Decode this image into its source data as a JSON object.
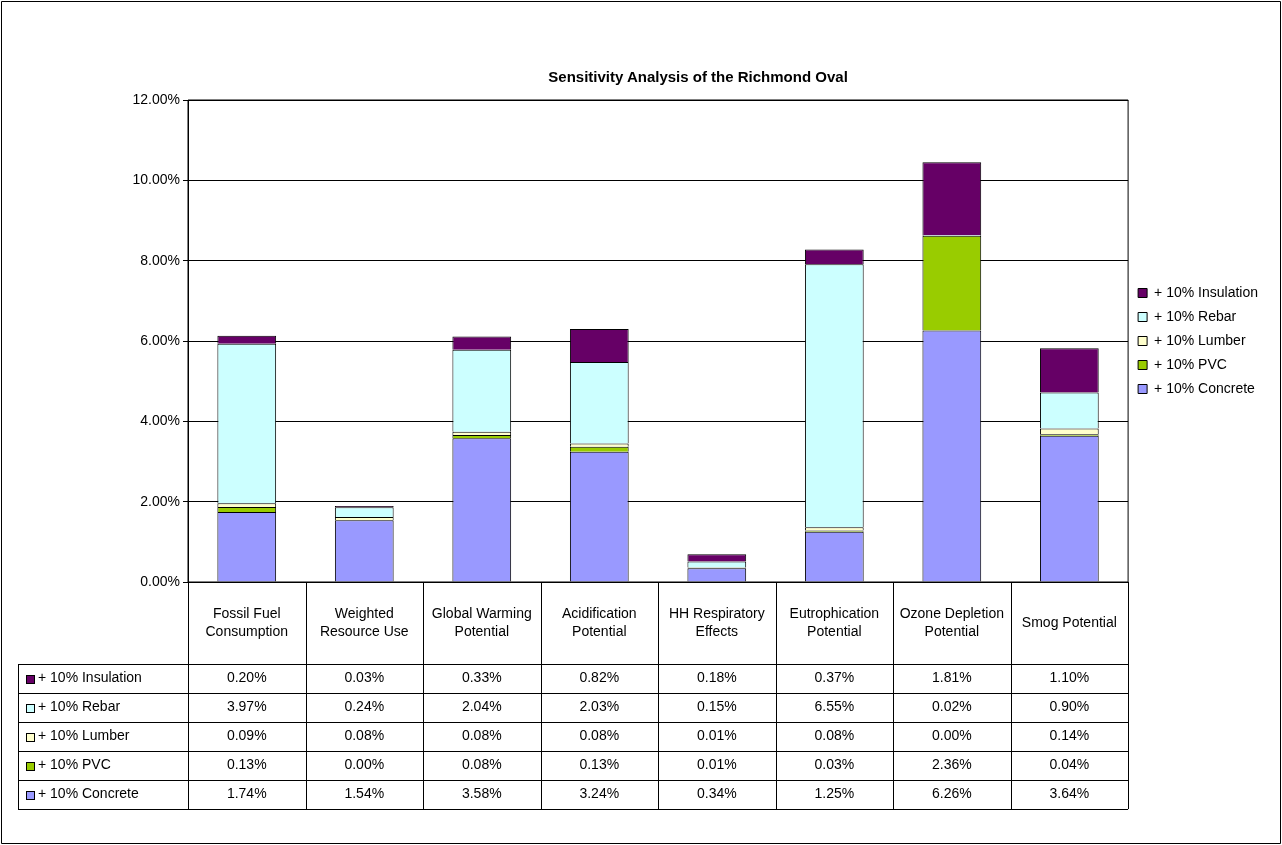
{
  "chart_data": {
    "type": "bar",
    "title": "Sensitivity Analysis of the Richmond Oval",
    "stacked": true,
    "grid": "y",
    "legend": "right",
    "data_labels": true,
    "categories": [
      "Fossil Fuel Consumption",
      "Weighted Resource Use",
      "Global Warming Potential",
      "Acidification Potential",
      "HH Respiratory Effects",
      "Eutrophication Potential",
      "Ozone Depletion Potential",
      "Smog Potential"
    ],
    "ylim": [
      0,
      12
    ],
    "yticks": [
      {
        "value": 0,
        "label": "0.00%"
      },
      {
        "value": 2,
        "label": "2.00%"
      },
      {
        "value": 4,
        "label": "4.00%"
      },
      {
        "value": 6,
        "label": "6.00%"
      },
      {
        "value": 8,
        "label": "8.00%"
      },
      {
        "value": 10,
        "label": "10.00%"
      },
      {
        "value": 12,
        "label": "12.00%"
      }
    ],
    "series": [
      {
        "name": "+ 10% Concrete",
        "color": "#9999ff",
        "values": [
          1.74,
          1.54,
          3.58,
          3.24,
          0.34,
          1.25,
          6.26,
          3.64
        ],
        "value_labels": [
          "1.74%",
          "1.54%",
          "3.58%",
          "3.24%",
          "0.34%",
          "1.25%",
          "6.26%",
          "3.64%"
        ]
      },
      {
        "name": "+ 10% PVC",
        "color": "#99cc00",
        "values": [
          0.13,
          0.0,
          0.08,
          0.13,
          0.01,
          0.03,
          2.36,
          0.04
        ],
        "value_labels": [
          "0.13%",
          "0.00%",
          "0.08%",
          "0.13%",
          "0.01%",
          "0.03%",
          "2.36%",
          "0.04%"
        ]
      },
      {
        "name": "+ 10% Lumber",
        "color": "#ffffcc",
        "values": [
          0.09,
          0.08,
          0.08,
          0.08,
          0.01,
          0.08,
          0.0,
          0.14
        ],
        "value_labels": [
          "0.09%",
          "0.08%",
          "0.08%",
          "0.08%",
          "0.01%",
          "0.08%",
          "0.00%",
          "0.14%"
        ]
      },
      {
        "name": "+ 10% Rebar",
        "color": "#ccffff",
        "values": [
          3.97,
          0.24,
          2.04,
          2.03,
          0.15,
          6.55,
          0.02,
          0.9
        ],
        "value_labels": [
          "3.97%",
          "0.24%",
          "2.04%",
          "2.03%",
          "0.15%",
          "6.55%",
          "0.02%",
          "0.90%"
        ]
      },
      {
        "name": "+ 10% Insulation",
        "color": "#660066",
        "values": [
          0.2,
          0.03,
          0.33,
          0.82,
          0.18,
          0.37,
          1.81,
          1.1
        ],
        "value_labels": [
          "0.20%",
          "0.03%",
          "0.33%",
          "0.82%",
          "0.18%",
          "0.37%",
          "1.81%",
          "1.10%"
        ]
      }
    ]
  }
}
